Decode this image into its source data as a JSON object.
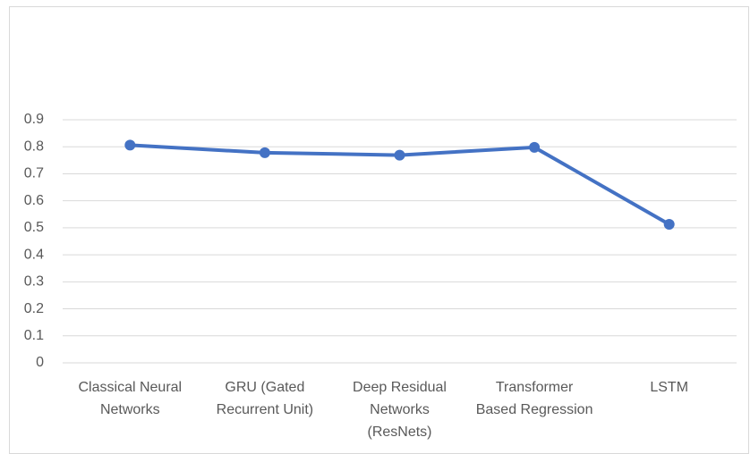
{
  "chart_data": {
    "type": "line",
    "categories": [
      "Classical Neural Networks",
      "GRU (Gated Recurrent Unit)",
      "Deep Residual Networks (ResNets)",
      "Transformer Based Regression",
      "LSTM"
    ],
    "values": [
      0.806,
      0.778,
      0.769,
      0.798,
      0.513
    ],
    "color": "#4472c4",
    "ylim": [
      0,
      0.9
    ],
    "yticks": [
      0,
      0.1,
      0.2,
      0.3,
      0.4,
      0.5,
      0.6,
      0.7,
      0.8,
      0.9
    ],
    "grid": true
  }
}
